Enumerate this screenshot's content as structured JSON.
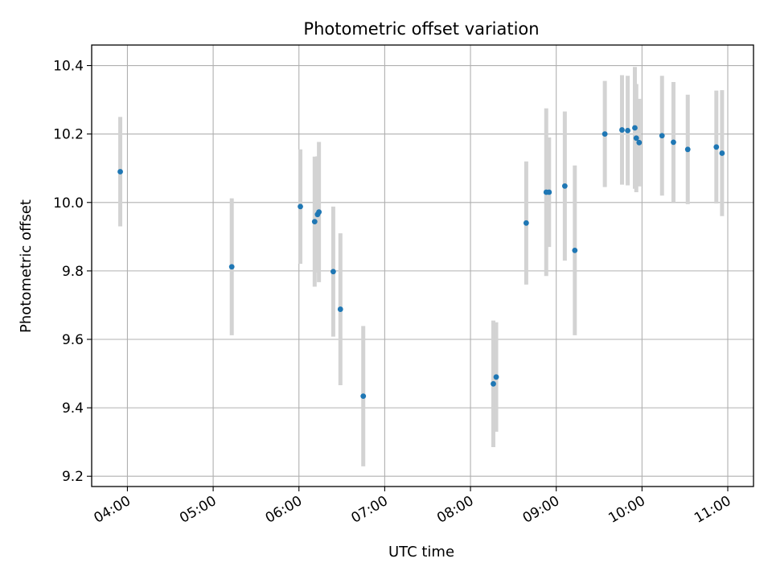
{
  "chart_data": {
    "type": "scatter",
    "title": "Photometric offset variation",
    "xlabel": "UTC time",
    "ylabel": "Photometric offset",
    "xlim": [
      "03:35",
      "11:18"
    ],
    "ylim": [
      9.17,
      10.46
    ],
    "x_ticks": [
      "04:00",
      "05:00",
      "06:00",
      "07:00",
      "08:00",
      "09:00",
      "10:00",
      "11:00"
    ],
    "y_ticks": [
      9.2,
      9.4,
      9.6,
      9.8,
      10.0,
      10.2,
      10.4
    ],
    "y_tick_labels": [
      "9.2",
      "9.4",
      "9.6",
      "9.8",
      "10.0",
      "10.2",
      "10.4"
    ],
    "grid": true,
    "marker_color": "#1f77b4",
    "errorbar_color": "#d3d3d3",
    "points": [
      {
        "x": "03:55",
        "y": 10.09,
        "err": 0.16
      },
      {
        "x": "05:13",
        "y": 9.812,
        "err": 0.2
      },
      {
        "x": "06:01",
        "y": 9.988,
        "err": 0.167
      },
      {
        "x": "06:11",
        "y": 9.944,
        "err": 0.19
      },
      {
        "x": "06:13",
        "y": 9.965,
        "err": 0.17
      },
      {
        "x": "06:14",
        "y": 9.972,
        "err": 0.205
      },
      {
        "x": "06:24",
        "y": 9.798,
        "err": 0.19
      },
      {
        "x": "06:29",
        "y": 9.688,
        "err": 0.222
      },
      {
        "x": "06:45",
        "y": 9.434,
        "err": 0.205
      },
      {
        "x": "08:16",
        "y": 9.47,
        "err": 0.185
      },
      {
        "x": "08:18",
        "y": 9.49,
        "err": 0.16
      },
      {
        "x": "08:39",
        "y": 9.94,
        "err": 0.18
      },
      {
        "x": "08:53",
        "y": 10.03,
        "err": 0.245
      },
      {
        "x": "08:55",
        "y": 10.03,
        "err": 0.16
      },
      {
        "x": "09:06",
        "y": 10.048,
        "err": 0.218
      },
      {
        "x": "09:13",
        "y": 9.86,
        "err": 0.248
      },
      {
        "x": "09:34",
        "y": 10.2,
        "err": 0.155
      },
      {
        "x": "09:46",
        "y": 10.212,
        "err": 0.16
      },
      {
        "x": "09:50",
        "y": 10.21,
        "err": 0.16
      },
      {
        "x": "09:55",
        "y": 10.218,
        "err": 0.178
      },
      {
        "x": "09:56",
        "y": 10.188,
        "err": 0.158
      },
      {
        "x": "09:58",
        "y": 10.175,
        "err": 0.128
      },
      {
        "x": "10:14",
        "y": 10.195,
        "err": 0.175
      },
      {
        "x": "10:22",
        "y": 10.176,
        "err": 0.176
      },
      {
        "x": "10:32",
        "y": 10.155,
        "err": 0.16
      },
      {
        "x": "10:52",
        "y": 10.162,
        "err": 0.165
      },
      {
        "x": "10:56",
        "y": 10.144,
        "err": 0.184
      }
    ]
  }
}
